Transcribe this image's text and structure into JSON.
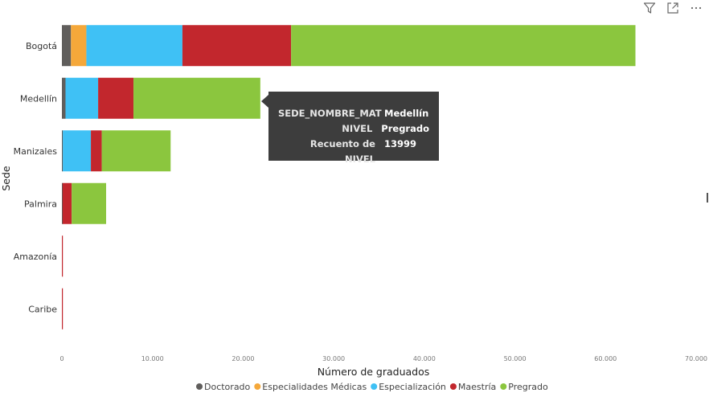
{
  "chart_data": {
    "type": "bar",
    "orientation": "horizontal",
    "stacked": true,
    "categories": [
      "Bogotá",
      "Medellín",
      "Manizales",
      "Palmira",
      "Amazonía",
      "Caribe"
    ],
    "series": [
      {
        "name": "Doctorado",
        "color": "#605e5c",
        "values": [
          1000,
          400,
          100,
          80,
          0,
          0
        ]
      },
      {
        "name": "Especialidades Médicas",
        "color": "#f5a83a",
        "values": [
          1700,
          0,
          0,
          0,
          0,
          0
        ]
      },
      {
        "name": "Especialización",
        "color": "#3fc1f5",
        "values": [
          10600,
          3600,
          3100,
          0,
          0,
          0
        ]
      },
      {
        "name": "Maestría",
        "color": "#c2272d",
        "values": [
          12000,
          3900,
          1200,
          1000,
          70,
          50
        ]
      },
      {
        "name": "Pregrado",
        "color": "#8bc63e",
        "values": [
          38000,
          13999,
          7600,
          3800,
          0,
          0
        ]
      }
    ],
    "xlabel": "Número de graduados",
    "ylabel": "Sede",
    "xlim": [
      0,
      70000
    ],
    "xticks": [
      0,
      10000,
      20000,
      30000,
      40000,
      50000,
      60000,
      70000
    ],
    "xtick_labels": [
      "0",
      "10.000",
      "20.000",
      "30.000",
      "40.000",
      "50.000",
      "60.000",
      "70.000"
    ],
    "legend_position": "bottom",
    "grid": false
  },
  "tooltip": {
    "rows": [
      {
        "key": "SEDE_NOMBRE_MAT",
        "value": "Medellín"
      },
      {
        "key": "NIVEL",
        "value": "Pregrado"
      },
      {
        "key": "Recuento de NIVEL",
        "value": "13999"
      }
    ]
  },
  "toolbar": {
    "icons": [
      "filter-icon",
      "focus-mode-icon",
      "more-options-icon"
    ]
  }
}
